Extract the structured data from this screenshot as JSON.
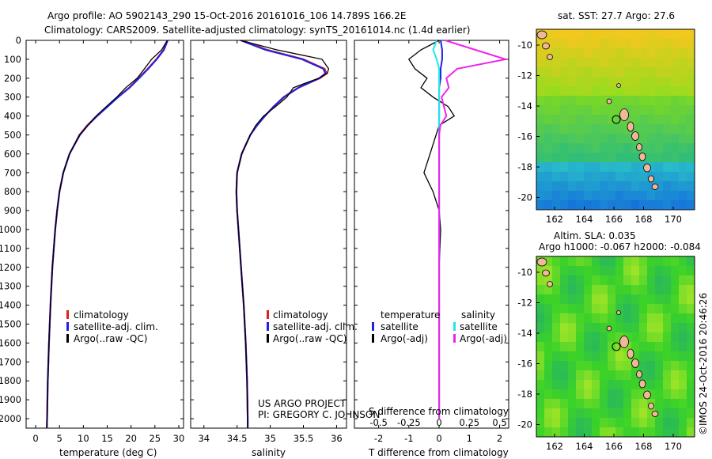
{
  "header": {
    "line1": "Argo profile: AO 5902143_290 15-Oct-2016 20161016_106 14.789S 166.2E",
    "line2": "Climatology: CARS2009. Satellite-adjusted climatology: synTS_20161014.nc (1.4d earlier)"
  },
  "depth_ticks": [
    "0",
    "100",
    "200",
    "300",
    "400",
    "500",
    "600",
    "700",
    "800",
    "900",
    "1000",
    "1100",
    "1200",
    "1300",
    "1400",
    "1500",
    "1600",
    "1700",
    "1800",
    "1900",
    "2000"
  ],
  "legend_temp_sal": {
    "climatology": "climatology",
    "satellite": "satellite-adj. clim.",
    "argo": "Argo(..raw -QC)"
  },
  "legend_diff": {
    "temp_head": "temperature",
    "sal_head": "salinity",
    "temp_sat": "satellite",
    "temp_argo": "Argo(-adj)",
    "sal_sat": "satellite",
    "sal_argo": "Argo(-adj)"
  },
  "project_note": {
    "line1": "US ARGO PROJECT",
    "line2": "PI: GREGORY C. JOHNSON"
  },
  "map_sst": {
    "title": "sat. SST: 27.7 Argo: 27.6",
    "lat_ticks": [
      "-10",
      "-12",
      "-14",
      "-16",
      "-18",
      "-20"
    ],
    "lon_ticks": [
      "162",
      "164",
      "166",
      "168",
      "170"
    ]
  },
  "map_sla": {
    "title1": "Altim. SLA: 0.035",
    "title2": "Argo h1000: -0.067 h2000: -0.084",
    "lat_ticks": [
      "-10",
      "-12",
      "-14",
      "-16",
      "-18",
      "-20"
    ],
    "lon_ticks": [
      "162",
      "164",
      "166",
      "168",
      "170"
    ]
  },
  "footer": {
    "stamp": "©IMOS 24-Oct-2016 20:46:26"
  },
  "colors": {
    "climatology": "#e0201c",
    "satellite": "#1e22e6",
    "argo": "#000000",
    "sal_sat": "#22e6e6",
    "sal_argo": "#ee22ee",
    "land": "#f0b898"
  },
  "chart_data": [
    {
      "type": "line",
      "name": "temperature",
      "xlabel": "temperature (deg C)",
      "ylabel": "",
      "xlim": [
        -2,
        31
      ],
      "ylim": [
        2050,
        0
      ],
      "xticks": [
        "0",
        "5",
        "10",
        "15",
        "20",
        "25",
        "30"
      ],
      "depth": [
        0,
        50,
        100,
        150,
        200,
        250,
        300,
        350,
        400,
        450,
        500,
        600,
        700,
        800,
        900,
        1000,
        1200,
        1400,
        1600,
        1800,
        2000,
        2050
      ],
      "series": [
        {
          "name": "climatology",
          "values": [
            27.6,
            26.8,
            25.3,
            23.5,
            21.6,
            19.6,
            17.2,
            15.0,
            12.8,
            10.8,
            9.2,
            7.1,
            5.8,
            5.0,
            4.5,
            4.1,
            3.5,
            3.1,
            2.8,
            2.55,
            2.4,
            2.35
          ]
        },
        {
          "name": "satellite-adj. clim.",
          "values": [
            27.7,
            26.9,
            25.4,
            23.6,
            21.7,
            19.7,
            17.3,
            15.1,
            12.9,
            10.9,
            9.3,
            7.1,
            5.8,
            5.0,
            4.5,
            4.1,
            3.5,
            3.1,
            2.8,
            2.55,
            2.4,
            2.35
          ]
        },
        {
          "name": "Argo(..raw -QC)",
          "values": [
            27.6,
            26.4,
            24.3,
            22.8,
            21.3,
            18.9,
            17.0,
            14.8,
            12.7,
            10.9,
            9.2,
            7.1,
            5.8,
            5.0,
            4.5,
            4.1,
            3.5,
            3.1,
            2.8,
            2.55,
            2.4,
            2.35
          ]
        }
      ]
    },
    {
      "type": "line",
      "name": "salinity",
      "xlabel": "salinity",
      "xlim": [
        33.8,
        36.15
      ],
      "ylim": [
        2050,
        0
      ],
      "xticks": [
        "34",
        "34.5",
        "35",
        "35.5",
        "36"
      ],
      "depth": [
        0,
        50,
        100,
        150,
        175,
        200,
        250,
        300,
        350,
        400,
        450,
        500,
        600,
        700,
        800,
        900,
        1000,
        1200,
        1400,
        1600,
        1800,
        2000,
        2050
      ],
      "series": [
        {
          "name": "climatology",
          "values": [
            34.58,
            34.95,
            35.5,
            35.82,
            35.85,
            35.75,
            35.42,
            35.2,
            35.05,
            34.92,
            34.8,
            34.7,
            34.57,
            34.5,
            34.49,
            34.5,
            34.52,
            34.56,
            34.6,
            34.63,
            34.65,
            34.66,
            34.66
          ]
        },
        {
          "name": "satellite-adj. clim.",
          "values": [
            34.55,
            34.93,
            35.48,
            35.8,
            35.83,
            35.74,
            35.43,
            35.21,
            35.05,
            34.92,
            34.8,
            34.7,
            34.57,
            34.5,
            34.49,
            34.5,
            34.52,
            34.56,
            34.6,
            34.63,
            34.65,
            34.66,
            34.66
          ]
        },
        {
          "name": "Argo(..raw -QC)",
          "values": [
            34.55,
            35.1,
            35.78,
            35.88,
            35.86,
            35.73,
            35.35,
            35.25,
            35.08,
            34.9,
            34.78,
            34.7,
            34.57,
            34.5,
            34.49,
            34.5,
            34.52,
            34.56,
            34.6,
            34.63,
            34.65,
            34.66,
            34.66
          ]
        }
      ]
    },
    {
      "type": "line",
      "name": "difference from climatology",
      "xlabel": "T difference from climatology",
      "xlabel_top": "S difference from climatology",
      "xlim": [
        -2.8,
        2.3
      ],
      "ylim": [
        2050,
        0
      ],
      "xticks": [
        "-2",
        "-1",
        "0",
        "1",
        "2"
      ],
      "xticks_top": [
        "-0.5",
        "-0.25",
        "0",
        "0.25",
        "0.5"
      ],
      "depth": [
        0,
        50,
        100,
        150,
        200,
        250,
        300,
        350,
        400,
        450,
        500,
        600,
        700,
        800,
        900,
        1000,
        1200,
        1400,
        1600,
        1800,
        2000
      ],
      "series": [
        {
          "name": "temperature satellite",
          "values": [
            0.05,
            0.1,
            0.1,
            0.05,
            0.05,
            0.0,
            0.0,
            0.0,
            0.0,
            0.0,
            0.0,
            0.0,
            0.0,
            0.0,
            0.0,
            0.0,
            0.0,
            0.0,
            0.0,
            0.0,
            0.0
          ]
        },
        {
          "name": "temperature Argo(-adj)",
          "values": [
            0.0,
            -0.6,
            -1.0,
            -0.8,
            -0.4,
            -0.6,
            -0.2,
            0.3,
            0.5,
            0.0,
            -0.1,
            -0.3,
            -0.5,
            -0.2,
            0.0,
            0.05,
            0.0,
            0.0,
            0.0,
            0.0,
            0.0
          ]
        },
        {
          "name": "salinity satellite",
          "values": [
            -0.02,
            -0.05,
            -0.02,
            0.0,
            0.0,
            0.0,
            0.0,
            0.0,
            0.0,
            0.0,
            0.0,
            0.0,
            0.0,
            0.0,
            0.0,
            0.0,
            0.0,
            0.0,
            0.0,
            0.0,
            0.0
          ]
        },
        {
          "name": "salinity Argo(-adj)",
          "values": [
            0.05,
            0.3,
            0.55,
            0.15,
            0.06,
            0.08,
            0.02,
            0.04,
            0.06,
            0.01,
            0.0,
            0.0,
            0.0,
            0.0,
            0.0,
            0.0,
            0.0,
            0.0,
            0.0,
            0.0,
            0.0
          ]
        }
      ]
    }
  ]
}
